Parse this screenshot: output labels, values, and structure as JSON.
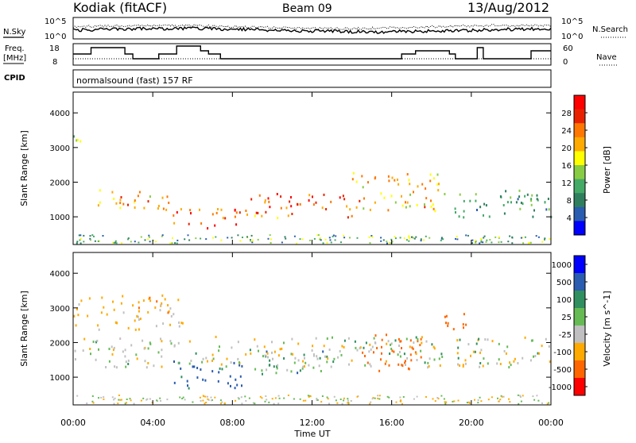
{
  "header": {
    "station": "Kodiak (fitACF)",
    "beam": "Beam 09",
    "date": "13/Aug/2012"
  },
  "noise_panel": {
    "left_label": "N.Sky",
    "left_ticks": [
      "10^5",
      "10^0"
    ],
    "right_label": "N.Search",
    "right_ticks": [
      "10^5",
      "10^0"
    ]
  },
  "freq_panel": {
    "left_label_1": "Freq.",
    "left_label_2": "[MHz]",
    "left_ticks": [
      "18",
      "8"
    ],
    "right_label": "Nave",
    "right_ticks": [
      "60",
      "0"
    ]
  },
  "cpid_panel": {
    "label": "CPID",
    "text": "normalsound (fast) 157 RF"
  },
  "chart_data": [
    {
      "type": "heatmap",
      "panel": "power",
      "ylabel": "Slant Range [km]",
      "xlabel": "Time UT",
      "ylim": [
        200,
        4600
      ],
      "xlim": [
        0,
        24
      ],
      "yticks": [
        "1000",
        "2000",
        "3000",
        "4000"
      ],
      "xticks": [
        "00:00",
        "04:00",
        "08:00",
        "12:00",
        "16:00",
        "20:00",
        "00:00"
      ],
      "colorbar": {
        "label": "Power [dB]",
        "ticks": [
          "28",
          "24",
          "20",
          "16",
          "12",
          "8",
          "4"
        ],
        "colors": [
          "#ff0000",
          "#e82200",
          "#ff7700",
          "#ffaa00",
          "#ffff00",
          "#88cc44",
          "#44aa66",
          "#2f7f5f",
          "#2a5cb0",
          "#0000ff"
        ]
      },
      "features": [
        {
          "t0": 0.0,
          "t1": 0.6,
          "r0": 2800,
          "r1": 3400,
          "level": 14
        },
        {
          "t0": 1.0,
          "t1": 5.0,
          "r0": 1200,
          "r1": 1800,
          "level": 20
        },
        {
          "t0": 5.0,
          "t1": 8.5,
          "r0": 700,
          "r1": 1300,
          "level": 26
        },
        {
          "t0": 8.5,
          "t1": 14.0,
          "r0": 1000,
          "r1": 1700,
          "level": 24
        },
        {
          "t0": 14.0,
          "t1": 18.5,
          "r0": 1200,
          "r1": 2300,
          "level": 20
        },
        {
          "t0": 18.5,
          "t1": 24.0,
          "r0": 1000,
          "r1": 1800,
          "level": 10
        }
      ]
    },
    {
      "type": "heatmap",
      "panel": "velocity",
      "ylabel": "Slant Range [km]",
      "xlabel": "Time UT",
      "ylim": [
        200,
        4600
      ],
      "xlim": [
        0,
        24
      ],
      "yticks": [
        "1000",
        "2000",
        "3000",
        "4000"
      ],
      "xticks": [
        "00:00",
        "04:00",
        "08:00",
        "12:00",
        "16:00",
        "20:00",
        "00:00"
      ],
      "colorbar": {
        "label": "Velocity [m s^-1]",
        "ticks": [
          "1000",
          "500",
          "100",
          "25",
          "-25",
          "-100",
          "-500",
          "-1000"
        ],
        "colors": [
          "#0000ff",
          "#2a5cb0",
          "#2f8f5f",
          "#66bb55",
          "#c0c0c0",
          "#ffaa00",
          "#ff6600",
          "#ff0000"
        ]
      },
      "features": [
        {
          "t0": 0.0,
          "t1": 5.5,
          "r0": 2400,
          "r1": 3400,
          "level": -50
        },
        {
          "t0": 5.0,
          "t1": 8.5,
          "r0": 700,
          "r1": 1500,
          "level": 150
        },
        {
          "t0": 9.0,
          "t1": 13.0,
          "r0": 1100,
          "r1": 1800,
          "level": 60
        },
        {
          "t0": 14.5,
          "t1": 17.5,
          "r0": 1200,
          "r1": 2300,
          "level": -300
        },
        {
          "t0": 18.5,
          "t1": 19.8,
          "r0": 2200,
          "r1": 2900,
          "level": -400
        },
        {
          "t0": 0.0,
          "t1": 24.0,
          "r0": 1300,
          "r1": 2200,
          "level": 0
        }
      ]
    }
  ],
  "colors": {
    "frame": "#000000",
    "background": "#ffffff"
  }
}
